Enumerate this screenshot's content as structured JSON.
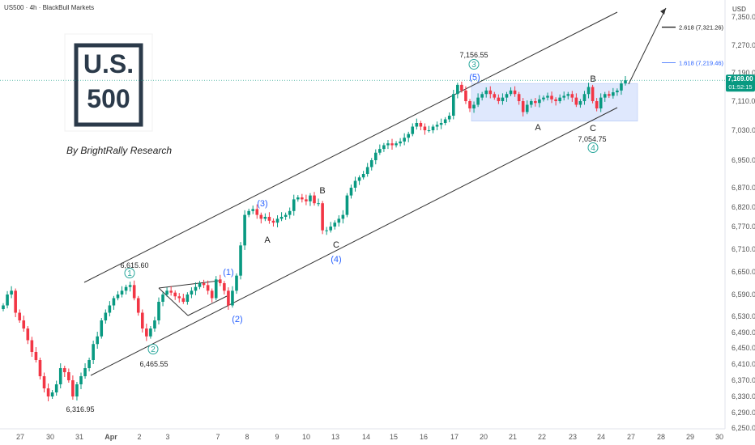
{
  "header": {
    "title": "US500 · 4h · BlackBull Markets",
    "currency": "USD"
  },
  "logo": {
    "line1": "U.S.",
    "line2": "500",
    "byline": "By BrightRally Research"
  },
  "price_tag": {
    "price": "7,169.00",
    "countdown": "01:52:15"
  },
  "colors": {
    "up": "#089981",
    "down": "#f23645",
    "channel": "#333333",
    "box": "#c9d8fb",
    "wave_circle": "#26a69a",
    "wave_blue": "#2962ff",
    "tag": "#089981"
  },
  "chart_data": {
    "type": "candlestick",
    "title": "US500 · 4h · BlackBull Markets",
    "ylim": [
      6250,
      7370
    ],
    "y_ticks": [
      6250,
      6290,
      6330,
      6370,
      6410,
      6450,
      6490,
      6530,
      6590,
      6650,
      6710,
      6770,
      6820,
      6870,
      6950,
      7030,
      7110,
      7190,
      7270,
      7350
    ],
    "y_tick_labels": [
      "6,250.00",
      "6,290.00",
      "6,330.00",
      "6,370.00",
      "6,410.00",
      "6,450.00",
      "6,490.00",
      "6,530.00",
      "6,590.00",
      "6,650.00",
      "6,710.00",
      "6,770.00",
      "6,820.00",
      "6,870.00",
      "6,950.00",
      "7,030.00",
      "7,110.00",
      "7,190.00",
      "7,270.00",
      "7,350.00"
    ],
    "x_ticks": [
      "27",
      "30",
      "31",
      "Apr",
      "2",
      "3",
      "7",
      "8",
      "9",
      "10",
      "13",
      "14",
      "15",
      "16",
      "17",
      "20",
      "21",
      "22",
      "23",
      "24",
      "27",
      "28",
      "29",
      "30"
    ],
    "closes": [
      6560,
      6590,
      6600,
      6540,
      6520,
      6500,
      6470,
      6440,
      6420,
      6380,
      6350,
      6330,
      6340,
      6360,
      6400,
      6390,
      6370,
      6330,
      6360,
      6380,
      6400,
      6420,
      6460,
      6480,
      6520,
      6540,
      6560,
      6580,
      6590,
      6600,
      6610,
      6615,
      6580,
      6540,
      6500,
      6480,
      6500,
      6520,
      6570,
      6590,
      6600,
      6595,
      6585,
      6580,
      6570,
      6590,
      6600,
      6610,
      6620,
      6615,
      6600,
      6580,
      6630,
      6620,
      6600,
      6560,
      6600,
      6640,
      6720,
      6800,
      6810,
      6815,
      6800,
      6790,
      6795,
      6785,
      6780,
      6790,
      6795,
      6800,
      6810,
      6840,
      6845,
      6840,
      6835,
      6850,
      6830,
      6830,
      6760,
      6760,
      6770,
      6780,
      6790,
      6800,
      6850,
      6870,
      6890,
      6900,
      6910,
      6930,
      6950,
      6970,
      6980,
      6990,
      6995,
      6990,
      6995,
      7000,
      7010,
      7020,
      7040,
      7050,
      7040,
      7030,
      7030,
      7040,
      7045,
      7050,
      7060,
      7070,
      7130,
      7156,
      7140,
      7110,
      7090,
      7100,
      7120,
      7130,
      7140,
      7130,
      7120,
      7110,
      7120,
      7130,
      7140,
      7130,
      7110,
      7080,
      7100,
      7110,
      7105,
      7115,
      7120,
      7125,
      7115,
      7110,
      7120,
      7125,
      7130,
      7120,
      7100,
      7110,
      7130,
      7150,
      7110,
      7090,
      7120,
      7130,
      7125,
      7135,
      7140,
      7160,
      7169
    ],
    "levels": [
      {
        "label": "2.618 (7,321.26)",
        "value": 7321.26
      },
      {
        "label": "1.618 (7,219.46)",
        "value": 7219.46
      }
    ],
    "price_labels": [
      {
        "text": "6,615.60",
        "value": 6615.6
      },
      {
        "text": "6,465.55",
        "value": 6465.55
      },
      {
        "text": "6,316.95",
        "value": 6316.95
      },
      {
        "text": "7,156.55",
        "value": 7156.55
      },
      {
        "text": "7,054.75",
        "value": 7054.75
      }
    ],
    "wave_labels": [
      {
        "text": "1",
        "style": "circle"
      },
      {
        "text": "2",
        "style": "circle"
      },
      {
        "text": "3",
        "style": "circle"
      },
      {
        "text": "4",
        "style": "circle"
      },
      {
        "text": "(1)",
        "style": "blue"
      },
      {
        "text": "(2)",
        "style": "blue"
      },
      {
        "text": "(3)",
        "style": "blue"
      },
      {
        "text": "(4)",
        "style": "blue"
      },
      {
        "text": "(5)",
        "style": "blue"
      },
      {
        "text": "A",
        "style": "dark"
      },
      {
        "text": "B",
        "style": "dark"
      },
      {
        "text": "C",
        "style": "dark"
      },
      {
        "text": "A",
        "style": "dark"
      },
      {
        "text": "B",
        "style": "dark"
      },
      {
        "text": "C",
        "style": "dark"
      }
    ]
  }
}
